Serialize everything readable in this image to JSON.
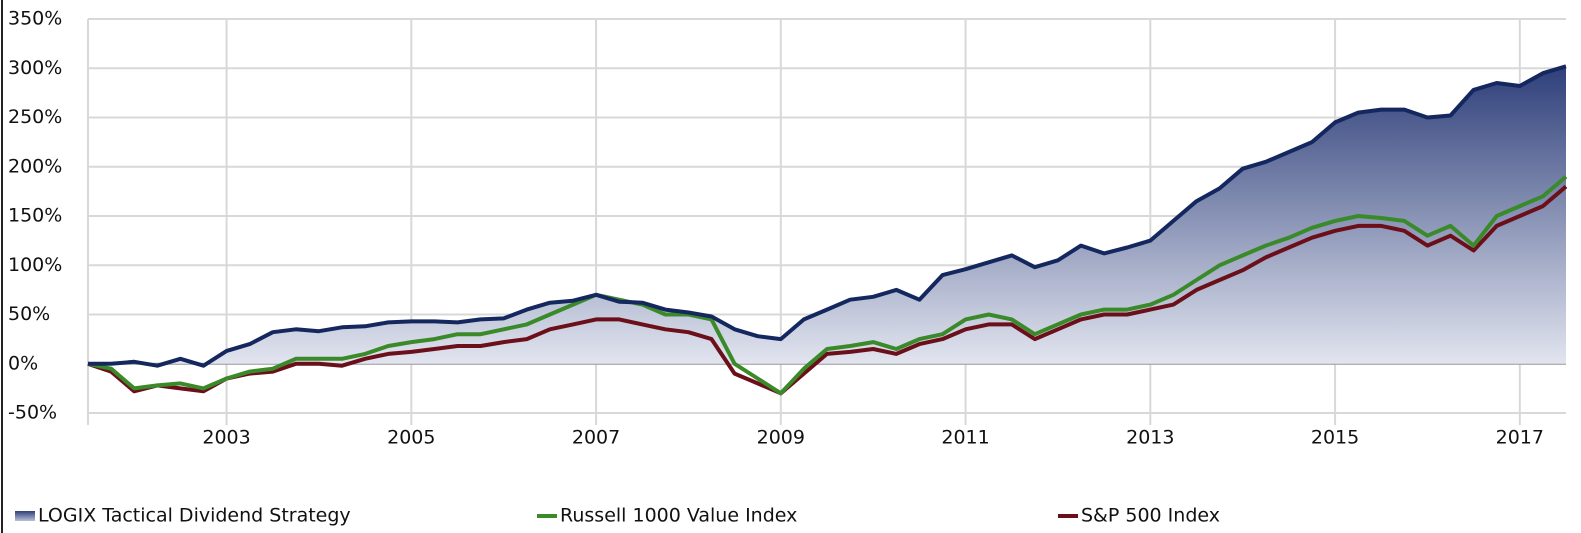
{
  "chart_data": {
    "type": "line",
    "x": [
      2001.5,
      2001.75,
      2002,
      2002.25,
      2002.5,
      2002.75,
      2003,
      2003.25,
      2003.5,
      2003.75,
      2004,
      2004.25,
      2004.5,
      2004.75,
      2005,
      2005.25,
      2005.5,
      2005.75,
      2006,
      2006.25,
      2006.5,
      2006.75,
      2007,
      2007.25,
      2007.5,
      2007.75,
      2008,
      2008.25,
      2008.5,
      2008.75,
      2009,
      2009.25,
      2009.5,
      2009.75,
      2010,
      2010.25,
      2010.5,
      2010.75,
      2011,
      2011.25,
      2011.5,
      2011.75,
      2012,
      2012.25,
      2012.5,
      2012.75,
      2013,
      2013.25,
      2013.5,
      2013.75,
      2014,
      2014.25,
      2014.5,
      2014.75,
      2015,
      2015.25,
      2015.5,
      2015.75,
      2016,
      2016.25,
      2016.5,
      2016.75,
      2017,
      2017.25,
      2017.5
    ],
    "series": [
      {
        "name": "LOGIX Tactical Dividend Strategy",
        "color": "#14275e",
        "area": true,
        "values": [
          0,
          0,
          2,
          -2,
          5,
          -2,
          13,
          20,
          32,
          35,
          33,
          37,
          38,
          42,
          43,
          43,
          42,
          45,
          46,
          55,
          62,
          64,
          70,
          63,
          62,
          55,
          52,
          48,
          35,
          28,
          25,
          45,
          55,
          65,
          68,
          75,
          65,
          90,
          96,
          103,
          110,
          98,
          105,
          120,
          112,
          118,
          125,
          145,
          165,
          178,
          198,
          205,
          215,
          225,
          245,
          255,
          258,
          258,
          250,
          252,
          278,
          285,
          282,
          295,
          302
        ]
      },
      {
        "name": "Russell 1000 Value Index",
        "color": "#3a8a2a",
        "values": [
          0,
          -5,
          -25,
          -22,
          -20,
          -25,
          -15,
          -8,
          -5,
          5,
          5,
          5,
          10,
          18,
          22,
          25,
          30,
          30,
          35,
          40,
          50,
          60,
          70,
          65,
          60,
          50,
          50,
          45,
          0,
          -15,
          -30,
          -5,
          15,
          18,
          22,
          15,
          25,
          30,
          45,
          50,
          45,
          30,
          40,
          50,
          55,
          55,
          60,
          70,
          85,
          100,
          110,
          120,
          128,
          138,
          145,
          150,
          148,
          145,
          130,
          140,
          120,
          150,
          160,
          170,
          190
        ]
      },
      {
        "name": "S&P 500 Index",
        "color": "#6b0f1a",
        "values": [
          0,
          -8,
          -28,
          -22,
          -25,
          -28,
          -15,
          -10,
          -8,
          0,
          0,
          -2,
          5,
          10,
          12,
          15,
          18,
          18,
          22,
          25,
          35,
          40,
          45,
          45,
          40,
          35,
          32,
          25,
          -10,
          -20,
          -30,
          -10,
          10,
          12,
          15,
          10,
          20,
          25,
          35,
          40,
          40,
          25,
          35,
          45,
          50,
          50,
          55,
          60,
          75,
          85,
          95,
          108,
          118,
          128,
          135,
          140,
          140,
          135,
          120,
          130,
          115,
          140,
          150,
          160,
          180
        ]
      }
    ],
    "xlim": [
      2001.5,
      2017.5
    ],
    "xticks": [
      2003,
      2005,
      2007,
      2009,
      2011,
      2013,
      2015,
      2017
    ],
    "ylim": [
      -50,
      350
    ],
    "yticks": [
      {
        "value": -50,
        "label": "-50%"
      },
      {
        "value": 0,
        "label": "0%"
      },
      {
        "value": 50,
        "label": "50%"
      },
      {
        "value": 100,
        "label": "100%"
      },
      {
        "value": 150,
        "label": "150%"
      },
      {
        "value": 200,
        "label": "200%"
      },
      {
        "value": 250,
        "label": "250%"
      },
      {
        "value": 300,
        "label": "300%"
      },
      {
        "value": 350,
        "label": "350%"
      }
    ],
    "grid": true,
    "legend": "bottom"
  }
}
